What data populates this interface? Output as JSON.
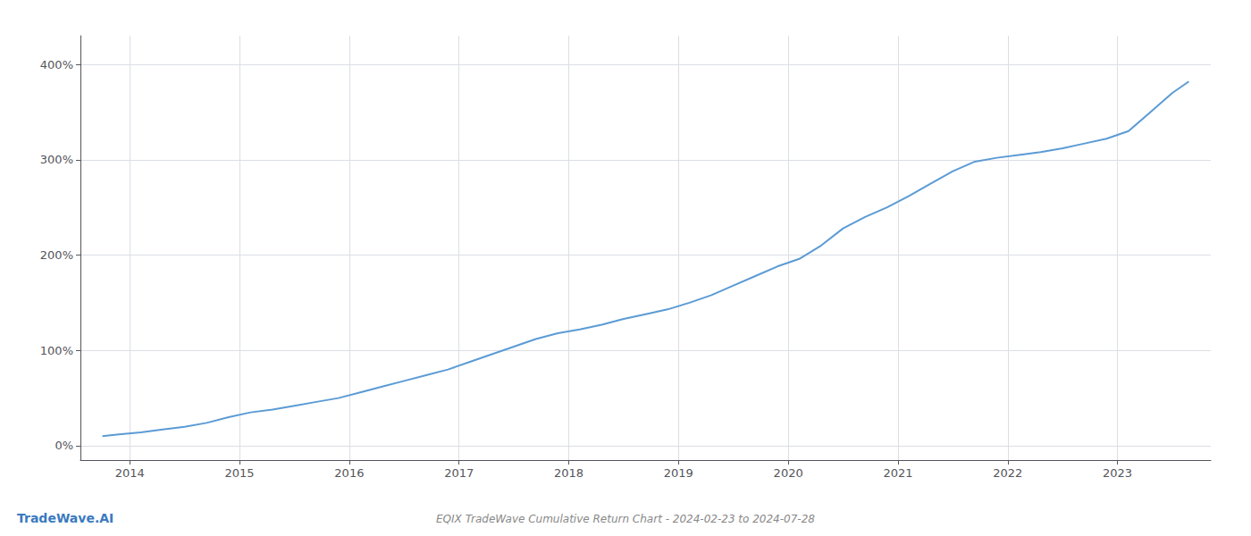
{
  "chart_data": {
    "type": "line",
    "title": "EQIX TradeWave Cumulative Return Chart - 2024-02-23 to 2024-07-28",
    "annotations": [
      "TradeWave.AI"
    ],
    "color": "#5b9bd5",
    "grid": true,
    "x": [
      2013.75,
      2013.9,
      2014.1,
      2014.3,
      2014.5,
      2014.7,
      2014.9,
      2015.1,
      2015.3,
      2015.5,
      2015.7,
      2015.9,
      2016.1,
      2016.3,
      2016.5,
      2016.7,
      2016.9,
      2017.1,
      2017.3,
      2017.5,
      2017.7,
      2017.9,
      2018.1,
      2018.3,
      2018.5,
      2018.7,
      2018.9,
      2019.1,
      2019.3,
      2019.5,
      2019.7,
      2019.9,
      2020.1,
      2020.3,
      2020.5,
      2020.7,
      2020.9,
      2021.1,
      2021.3,
      2021.5,
      2021.7,
      2021.9,
      2022.1,
      2022.3,
      2022.5,
      2022.7,
      2022.9,
      2023.1,
      2023.3,
      2023.5,
      2023.65
    ],
    "values": [
      10,
      12,
      14,
      17,
      20,
      24,
      30,
      35,
      38,
      42,
      46,
      50,
      56,
      62,
      68,
      74,
      80,
      88,
      96,
      104,
      112,
      118,
      122,
      127,
      133,
      138,
      143,
      150,
      158,
      168,
      178,
      188,
      196,
      210,
      228,
      240,
      250,
      262,
      275,
      288,
      298,
      302,
      305,
      308,
      312,
      317,
      322,
      330,
      350,
      370,
      382
    ],
    "xlim": [
      2013.55,
      2023.85
    ],
    "xticks": [
      2014,
      2015,
      2016,
      2017,
      2018,
      2019,
      2020,
      2021,
      2022,
      2023
    ],
    "ylim": [
      -15,
      430
    ],
    "yticks": [
      {
        "value": 0,
        "label": "0%"
      },
      {
        "value": 100,
        "label": "100%"
      },
      {
        "value": 200,
        "label": "200%"
      },
      {
        "value": 300,
        "label": "300%"
      },
      {
        "value": 400,
        "label": "400%"
      }
    ]
  }
}
